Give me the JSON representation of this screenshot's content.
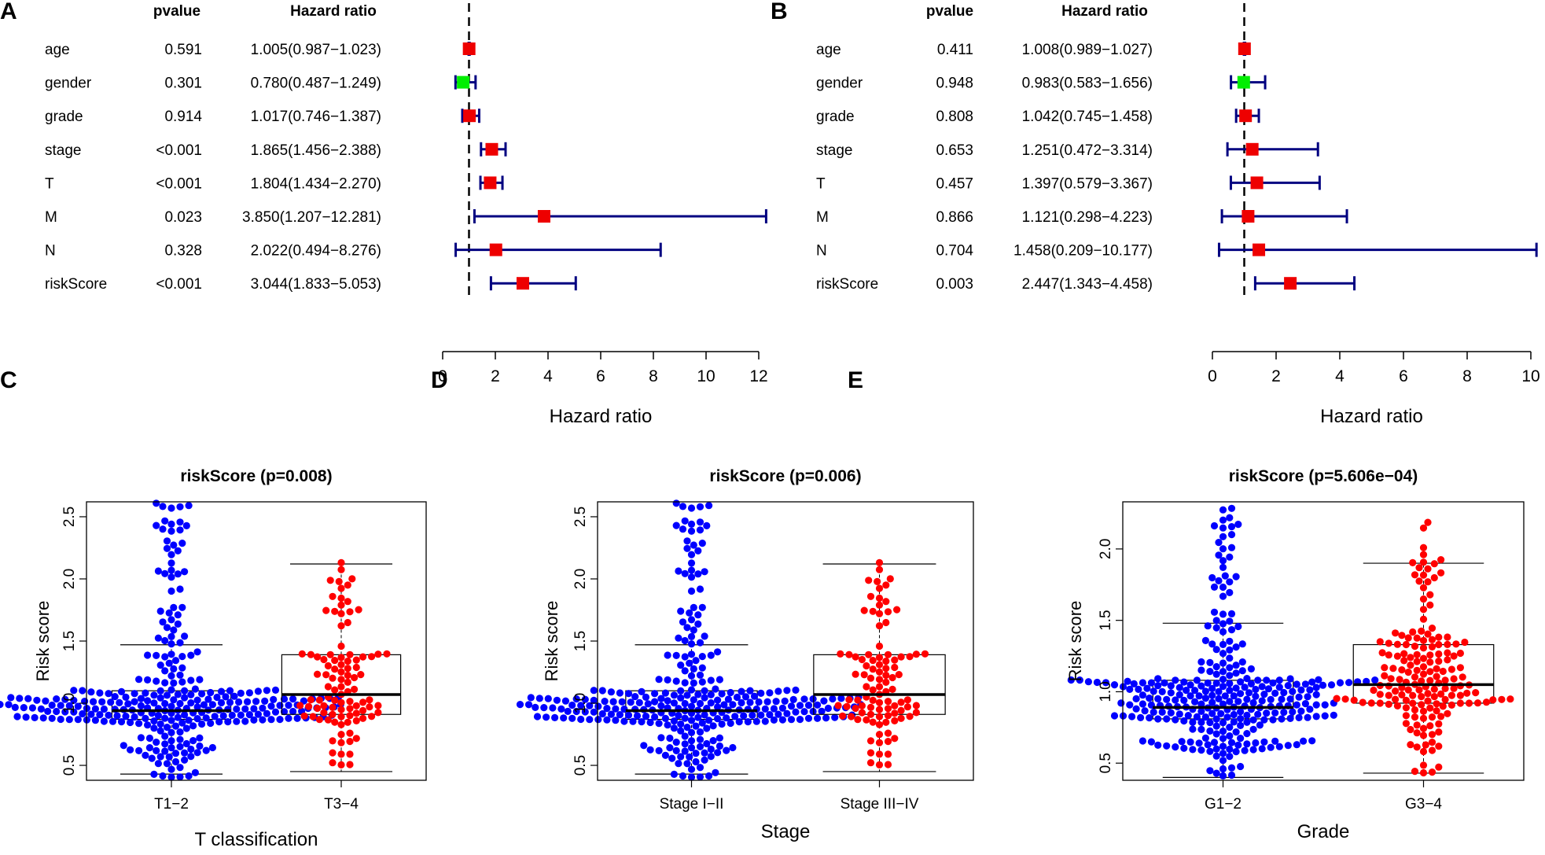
{
  "figure_labels": [
    "A",
    "B",
    "C",
    "D",
    "E"
  ],
  "chart_data": [
    {
      "panel": "A",
      "type": "forest",
      "col_pvalue": "pvalue",
      "col_hr": "Hazard ratio",
      "xlabel": "Hazard ratio",
      "xlim": [
        0,
        12
      ],
      "xticks": [
        0,
        2,
        4,
        6,
        8,
        10,
        12
      ],
      "reference_line": 1,
      "colors": {
        "increased": "#ee0000",
        "decreased": "#00ee00",
        "ci": "#000080"
      },
      "rows": [
        {
          "name": "age",
          "pvalue": "0.591",
          "hr_text": "1.005(0.987−1.023)",
          "hr": 1.005,
          "lo": 0.987,
          "hi": 1.023
        },
        {
          "name": "gender",
          "pvalue": "0.301",
          "hr_text": "0.780(0.487−1.249)",
          "hr": 0.78,
          "lo": 0.487,
          "hi": 1.249
        },
        {
          "name": "grade",
          "pvalue": "0.914",
          "hr_text": "1.017(0.746−1.387)",
          "hr": 1.017,
          "lo": 0.746,
          "hi": 1.387
        },
        {
          "name": "stage",
          "pvalue": "<0.001",
          "hr_text": "1.865(1.456−2.388)",
          "hr": 1.865,
          "lo": 1.456,
          "hi": 2.388
        },
        {
          "name": "T",
          "pvalue": "<0.001",
          "hr_text": "1.804(1.434−2.270)",
          "hr": 1.804,
          "lo": 1.434,
          "hi": 2.27
        },
        {
          "name": "M",
          "pvalue": "0.023",
          "hr_text": "3.850(1.207−12.281)",
          "hr": 3.85,
          "lo": 1.207,
          "hi": 12.281
        },
        {
          "name": "N",
          "pvalue": "0.328",
          "hr_text": "2.022(0.494−8.276)",
          "hr": 2.022,
          "lo": 0.494,
          "hi": 8.276
        },
        {
          "name": "riskScore",
          "pvalue": "<0.001",
          "hr_text": "3.044(1.833−5.053)",
          "hr": 3.044,
          "lo": 1.833,
          "hi": 5.053
        }
      ]
    },
    {
      "panel": "B",
      "type": "forest",
      "col_pvalue": "pvalue",
      "col_hr": "Hazard ratio",
      "xlabel": "Hazard ratio",
      "xlim": [
        0,
        10
      ],
      "xticks": [
        0,
        2,
        4,
        6,
        8,
        10
      ],
      "reference_line": 1,
      "colors": {
        "increased": "#ee0000",
        "decreased": "#00ee00",
        "ci": "#000080"
      },
      "rows": [
        {
          "name": "age",
          "pvalue": "0.411",
          "hr_text": "1.008(0.989−1.027)",
          "hr": 1.008,
          "lo": 0.989,
          "hi": 1.027
        },
        {
          "name": "gender",
          "pvalue": "0.948",
          "hr_text": "0.983(0.583−1.656)",
          "hr": 0.983,
          "lo": 0.583,
          "hi": 1.656
        },
        {
          "name": "grade",
          "pvalue": "0.808",
          "hr_text": "1.042(0.745−1.458)",
          "hr": 1.042,
          "lo": 0.745,
          "hi": 1.458
        },
        {
          "name": "stage",
          "pvalue": "0.653",
          "hr_text": "1.251(0.472−3.314)",
          "hr": 1.251,
          "lo": 0.472,
          "hi": 3.314
        },
        {
          "name": "T",
          "pvalue": "0.457",
          "hr_text": "1.397(0.579−3.367)",
          "hr": 1.397,
          "lo": 0.579,
          "hi": 3.367
        },
        {
          "name": "M",
          "pvalue": "0.866",
          "hr_text": "1.121(0.298−4.223)",
          "hr": 1.121,
          "lo": 0.298,
          "hi": 4.223
        },
        {
          "name": "N",
          "pvalue": "0.704",
          "hr_text": "1.458(0.209−10.177)",
          "hr": 1.458,
          "lo": 0.209,
          "hi": 10.177
        },
        {
          "name": "riskScore",
          "pvalue": "0.003",
          "hr_text": "2.447(1.343−4.458)",
          "hr": 2.447,
          "lo": 1.343,
          "hi": 4.458
        }
      ]
    },
    {
      "panel": "C",
      "type": "boxplot",
      "title": "riskScore (p=0.008)",
      "ylabel": "Risk score",
      "xlabel": "T classification",
      "ylim": [
        0.38,
        2.62
      ],
      "yticks": [
        0.5,
        1.0,
        1.5,
        2.0,
        2.5
      ],
      "ytick_labels": [
        "0.5",
        "1.0",
        "1.5",
        "2.0",
        "2.5"
      ],
      "groups": [
        {
          "name": "T1−2",
          "color": "#0000ff",
          "n": 300,
          "whisker_low": 0.43,
          "q1": 0.87,
          "median": 0.94,
          "q3": 1.1,
          "whisker_high": 1.47,
          "max": 2.62,
          "min": 0.4
        },
        {
          "name": "T3−4",
          "color": "#ff0000",
          "n": 100,
          "whisker_low": 0.45,
          "q1": 0.91,
          "median": 1.07,
          "q3": 1.39,
          "whisker_high": 2.12,
          "max": 2.21,
          "min": 0.45
        }
      ]
    },
    {
      "panel": "D",
      "type": "boxplot",
      "title": "riskScore (p=0.006)",
      "ylabel": "Risk score",
      "xlabel": "Stage",
      "ylim": [
        0.38,
        2.62
      ],
      "yticks": [
        0.5,
        1.0,
        1.5,
        2.0,
        2.5
      ],
      "ytick_labels": [
        "0.5",
        "1.0",
        "1.5",
        "2.0",
        "2.5"
      ],
      "groups": [
        {
          "name": "Stage I−II",
          "color": "#0000ff",
          "n": 300,
          "whisker_low": 0.43,
          "q1": 0.87,
          "median": 0.94,
          "q3": 1.1,
          "whisker_high": 1.47,
          "max": 2.62,
          "min": 0.4
        },
        {
          "name": "Stage III−IV",
          "color": "#ff0000",
          "n": 100,
          "whisker_low": 0.45,
          "q1": 0.91,
          "median": 1.07,
          "q3": 1.39,
          "whisker_high": 2.12,
          "max": 2.21,
          "min": 0.45
        }
      ]
    },
    {
      "panel": "E",
      "type": "boxplot",
      "title": "riskScore (p=5.606e−04)",
      "ylabel": "Risk score",
      "xlabel": "Grade",
      "ylim": [
        0.38,
        2.33
      ],
      "yticks": [
        0.5,
        1.0,
        1.5,
        2.0
      ],
      "ytick_labels": [
        "0.5",
        "1.0",
        "1.5",
        "2.0"
      ],
      "groups": [
        {
          "name": "G1−2",
          "color": "#0000ff",
          "n": 300,
          "whisker_low": 0.4,
          "q1": 0.81,
          "median": 0.89,
          "q3": 1.08,
          "whisker_high": 1.48,
          "max": 2.33,
          "min": 0.4
        },
        {
          "name": "G3−4",
          "color": "#ff0000",
          "n": 170,
          "whisker_low": 0.43,
          "q1": 0.92,
          "median": 1.05,
          "q3": 1.33,
          "whisker_high": 1.9,
          "max": 2.21,
          "min": 0.43
        }
      ]
    }
  ]
}
